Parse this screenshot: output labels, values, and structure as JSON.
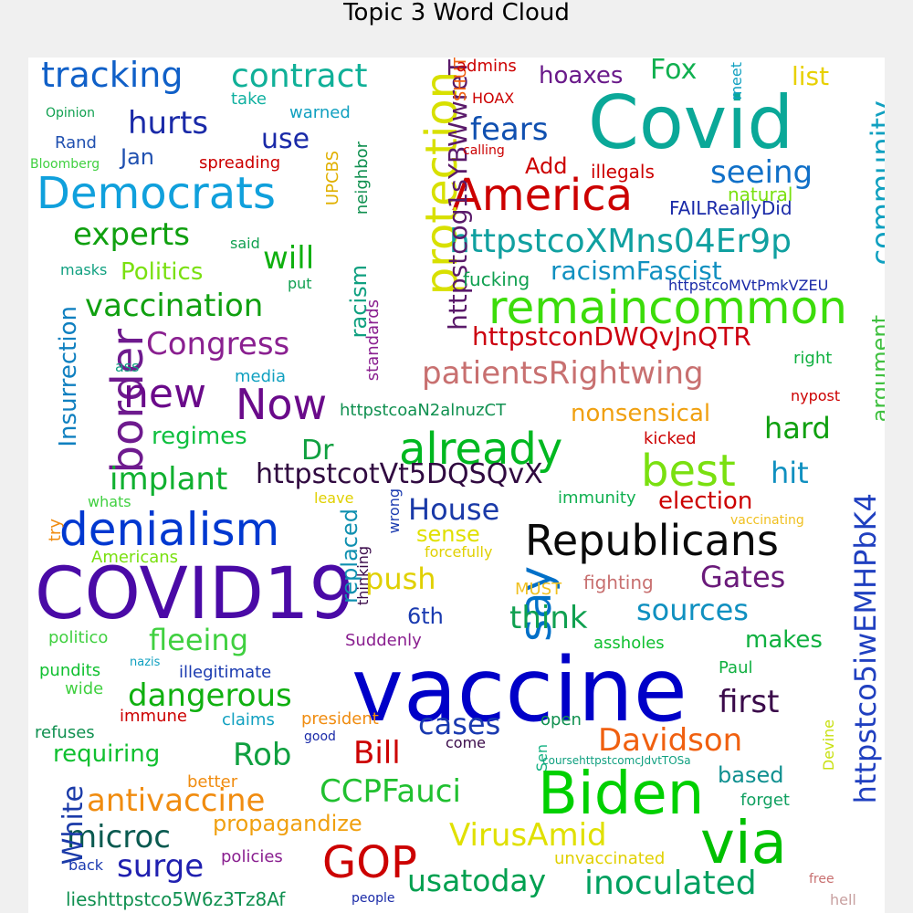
{
  "chart_data": {
    "type": "wordcloud",
    "title": "Topic 3 Word Cloud",
    "words": [
      {
        "text": "vaccine",
        "color": "#0000c8"
      },
      {
        "text": "COVID19",
        "color": "#4a0aa6"
      },
      {
        "text": "Covid",
        "color": "#0aa898"
      },
      {
        "text": "Biden",
        "color": "#00d000"
      },
      {
        "text": "Republicans",
        "color": "#0a0a0a"
      },
      {
        "text": "Democrats",
        "color": "#10a0dc"
      },
      {
        "text": "America",
        "color": "#cc0000"
      },
      {
        "text": "denialism",
        "color": "#0038d0"
      },
      {
        "text": "remaincommon",
        "color": "#3cdc0a"
      },
      {
        "text": "via",
        "color": "#00c000"
      },
      {
        "text": "already",
        "color": "#00b820"
      },
      {
        "text": "protection",
        "color": "#d8e000"
      },
      {
        "text": "border",
        "color": "#6e1a8e"
      },
      {
        "text": "best",
        "color": "#7ae010"
      },
      {
        "text": "Now",
        "color": "#6a0a8a"
      },
      {
        "text": "GOP",
        "color": "#cc0000"
      },
      {
        "text": "new",
        "color": "#6a0a8a"
      },
      {
        "text": "say",
        "color": "#0070c8"
      },
      {
        "text": "httpstcoXMns04Er9p",
        "color": "#10a0a0"
      },
      {
        "text": "patientsRightwing",
        "color": "#c87070"
      },
      {
        "text": "tracking",
        "color": "#1060c8"
      },
      {
        "text": "contract",
        "color": "#10b098"
      },
      {
        "text": "inoculated",
        "color": "#00a060"
      },
      {
        "text": "usatoday",
        "color": "#00a050"
      },
      {
        "text": "VirusAmid",
        "color": "#e0e000"
      },
      {
        "text": "CCPFauci",
        "color": "#20c030"
      },
      {
        "text": "antivaccine",
        "color": "#f08c10"
      },
      {
        "text": "microc",
        "color": "#0a5a50"
      },
      {
        "text": "surge",
        "color": "#2020b0"
      },
      {
        "text": "Davidson",
        "color": "#f06010"
      },
      {
        "text": "httpstco5iwEMHPbK4",
        "color": "#2040c0"
      },
      {
        "text": "httpstcotVt5DQSQvX",
        "color": "#300a40"
      },
      {
        "text": "httpstcog1sYBWwreT",
        "color": "#5a1a6a"
      },
      {
        "text": "httpstconDWQvJnQTR",
        "color": "#cc0010"
      },
      {
        "text": "fleeing",
        "color": "#40d040"
      },
      {
        "text": "dangerous",
        "color": "#10b010"
      },
      {
        "text": "Congress",
        "color": "#8a2090"
      },
      {
        "text": "vaccination",
        "color": "#10a010"
      },
      {
        "text": "implant",
        "color": "#10b030"
      },
      {
        "text": "experts",
        "color": "#10a010"
      },
      {
        "text": "hurts",
        "color": "#1a2aa8"
      },
      {
        "text": "fears",
        "color": "#1050b0"
      },
      {
        "text": "seeing",
        "color": "#1070c8"
      },
      {
        "text": "community",
        "color": "#10a0c0"
      },
      {
        "text": "House",
        "color": "#1a3aa8"
      },
      {
        "text": "Gates",
        "color": "#6a1a7a"
      },
      {
        "text": "first",
        "color": "#3a0a4a"
      },
      {
        "text": "Bill",
        "color": "#cc0000"
      },
      {
        "text": "Rob",
        "color": "#10a040"
      },
      {
        "text": "cases",
        "color": "#1a3ab0"
      },
      {
        "text": "think",
        "color": "#10a050"
      },
      {
        "text": "sources",
        "color": "#1090c0"
      },
      {
        "text": "push",
        "color": "#e0d000"
      },
      {
        "text": "hard",
        "color": "#10a010"
      },
      {
        "text": "hit",
        "color": "#1090c0"
      },
      {
        "text": "Dr",
        "color": "#10a040"
      },
      {
        "text": "Fox",
        "color": "#10b050"
      },
      {
        "text": "will",
        "color": "#10b010"
      },
      {
        "text": "use",
        "color": "#1a2aa8"
      },
      {
        "text": "White",
        "color": "#1a3aa8"
      },
      {
        "text": "Insurrection",
        "color": "#1080c0"
      },
      {
        "text": "racismFascist",
        "color": "#1090c0"
      },
      {
        "text": "nonsensical",
        "color": "#f0a010"
      },
      {
        "text": "election",
        "color": "#cc0000"
      },
      {
        "text": "requiring",
        "color": "#10c030"
      },
      {
        "text": "propagandize",
        "color": "#f0a010"
      },
      {
        "text": "lieshttpstco5W6z3Tz8Af",
        "color": "#109050"
      },
      {
        "text": "hoaxes",
        "color": "#6a1a8a"
      },
      {
        "text": "list",
        "color": "#e8d000"
      },
      {
        "text": "regimes",
        "color": "#10c040"
      },
      {
        "text": "makes",
        "color": "#10b040"
      },
      {
        "text": "based",
        "color": "#109090"
      },
      {
        "text": "replaced",
        "color": "#1090b0"
      },
      {
        "text": "6th",
        "color": "#1a3ab0"
      },
      {
        "text": "Politics",
        "color": "#7ae010"
      },
      {
        "text": "argument",
        "color": "#40c040"
      },
      {
        "text": "racism",
        "color": "#10a080"
      },
      {
        "text": "Jan",
        "color": "#2050b0"
      },
      {
        "text": "Add",
        "color": "#cc0000"
      },
      {
        "text": "sense",
        "color": "#e0e000"
      },
      {
        "text": "httpstcoaN2alnuzCT",
        "color": "#109050"
      },
      {
        "text": "standards",
        "color": "#8a2090"
      },
      {
        "text": "neighbor",
        "color": "#109050"
      },
      {
        "text": "UPCBS",
        "color": "#e0b000"
      },
      {
        "text": "SHUT",
        "color": "#f06010"
      },
      {
        "text": "httpstcoMVtPmkVZEU",
        "color": "#1a2aa8"
      },
      {
        "text": "FAILReallyDid",
        "color": "#1a2aa8"
      },
      {
        "text": "illegals",
        "color": "#cc0000"
      },
      {
        "text": "natural",
        "color": "#7ae010"
      },
      {
        "text": "fucking",
        "color": "#10a050"
      },
      {
        "text": "immunity",
        "color": "#10b050"
      },
      {
        "text": "fighting",
        "color": "#c87070"
      },
      {
        "text": "MUST",
        "color": "#f0c020"
      },
      {
        "text": "assholes",
        "color": "#10c030"
      },
      {
        "text": "Suddenly",
        "color": "#8a2090"
      },
      {
        "text": "illegitimate",
        "color": "#1a3ab0"
      },
      {
        "text": "policies",
        "color": "#8a2090"
      },
      {
        "text": "better",
        "color": "#f08c10"
      },
      {
        "text": "president",
        "color": "#f08c10"
      },
      {
        "text": "claims",
        "color": "#10a0c0"
      },
      {
        "text": "immune",
        "color": "#cc0000"
      },
      {
        "text": "pundits",
        "color": "#10c030"
      },
      {
        "text": "wide",
        "color": "#40d040"
      },
      {
        "text": "refuses",
        "color": "#109050"
      },
      {
        "text": "politico",
        "color": "#40d040"
      },
      {
        "text": "whats",
        "color": "#40d040"
      },
      {
        "text": "Americans",
        "color": "#7ae010"
      },
      {
        "text": "try",
        "color": "#f08c10"
      },
      {
        "text": "leave",
        "color": "#e0d000"
      },
      {
        "text": "wrong",
        "color": "#1a3ab0"
      },
      {
        "text": "thinking",
        "color": "#3a0a4a"
      },
      {
        "text": "forcefully",
        "color": "#e0d000"
      },
      {
        "text": "vaccinating",
        "color": "#f0c020"
      },
      {
        "text": "kicked",
        "color": "#cc0000"
      },
      {
        "text": "right",
        "color": "#10b040"
      },
      {
        "text": "nypost",
        "color": "#cc0000"
      },
      {
        "text": "media",
        "color": "#10a0c0"
      },
      {
        "text": "ass",
        "color": "#10a080"
      },
      {
        "text": "masks",
        "color": "#10a080"
      },
      {
        "text": "said",
        "color": "#10a050"
      },
      {
        "text": "put",
        "color": "#10a050"
      },
      {
        "text": "Rand",
        "color": "#2050b0"
      },
      {
        "text": "Bloomberg",
        "color": "#40d040"
      },
      {
        "text": "spreading",
        "color": "#cc0000"
      },
      {
        "text": "Opinion",
        "color": "#10a050"
      },
      {
        "text": "warned",
        "color": "#10a0c0"
      },
      {
        "text": "take",
        "color": "#10b0a0"
      },
      {
        "text": "admins",
        "color": "#cc0000"
      },
      {
        "text": "HOAX",
        "color": "#cc0000"
      },
      {
        "text": "calling",
        "color": "#cc0000"
      },
      {
        "text": "meet",
        "color": "#10a0c0"
      },
      {
        "text": "Paul",
        "color": "#10b040"
      },
      {
        "text": "Devine",
        "color": "#c8e010"
      },
      {
        "text": "Sen",
        "color": "#10b080"
      },
      {
        "text": "coursehttpstcomcJdvtTOSa",
        "color": "#10a080"
      },
      {
        "text": "open",
        "color": "#109050"
      },
      {
        "text": "come",
        "color": "#3a0a4a"
      },
      {
        "text": "good",
        "color": "#1a2aa8"
      },
      {
        "text": "forget",
        "color": "#10a060"
      },
      {
        "text": "unvaccinated",
        "color": "#e0d000"
      },
      {
        "text": "free",
        "color": "#c87070"
      },
      {
        "text": "hell",
        "color": "#c8a0a0"
      },
      {
        "text": "people",
        "color": "#1a2aa8"
      },
      {
        "text": "back",
        "color": "#1a3ab0"
      },
      {
        "text": "nazis",
        "color": "#10a0c0"
      }
    ]
  }
}
